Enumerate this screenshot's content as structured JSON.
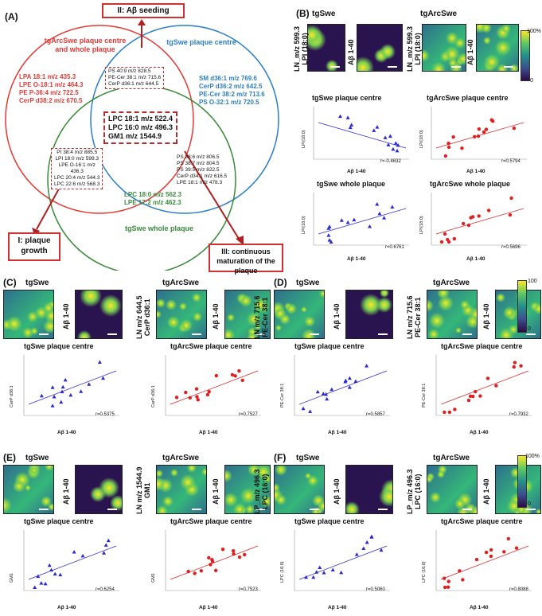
{
  "venn": {
    "panel": "(A)",
    "seeding": "II: Aβ seeding",
    "growth": "I: plaque growth",
    "maturation": "III: continuous maturation of the plaque",
    "red_title": "tgArcSwe plaque centre and whole plaque",
    "blue_title": "tgSwe plaque centre",
    "green_title": "tgSwe whole plaque",
    "red_only": [
      "LPA 18:1 m/z 435.3",
      "LPE O-18:1 m/z 464.3",
      "PE P-36:4 m/z 722.5",
      "CerP d38:2 m/z 670.5"
    ],
    "blue_only": [
      "SM d36:1 m/z 769.6",
      "CerP d36:2 m/z 642.5",
      "PE-Cer 38:2 m/z 713.6",
      "PS O-32:1 m/z 720.5"
    ],
    "green_only": [
      "LPC 18:0 m/z 562.3",
      "LPE 17:2 m/z 462.3"
    ],
    "red_blue": [
      "PS 40:9 m/z 828.5",
      "PE-Cer 38:1 m/z 715.6",
      "CerP d36:1 m/z 644.5"
    ],
    "red_green": [
      "PI 38:4 m/z 885.5",
      "LPI 18:0 m/z 599.3",
      "LPE O-16:1 m/z",
      "436.3",
      "LPC 20:4 m/z 544.3",
      "LPC 22:6 m/z 568.3"
    ],
    "blue_green": [
      "PS 38:6 m/z 806.5",
      "PS 38:7 m/z 804.5",
      "PS 39:5 m/z 822.5",
      "CerP d34:1 m/z 616.5",
      "LPE 18:1 m/z 478.3"
    ],
    "center": [
      "LPC 18:1 m/z 522.4",
      "LPC 16:0 m/z 496.3",
      "GM1 m/z 1544.9"
    ]
  },
  "colors": {
    "red": "#e53935",
    "blue": "#2a7fc8",
    "green": "#3a8a3a",
    "triangle": "#2a2ad0",
    "circle": "#e02020"
  },
  "common": {
    "tgSwe": "tgSwe",
    "tgArcSwe": "tgArcSwe",
    "abeta": "Aβ 1-40",
    "plaque_centre_swe": "tgSwe plaque centre",
    "plaque_centre_arc": "tgArcSwe plaque centre",
    "whole_swe": "tgSwe whole plaque",
    "whole_arc": "tgArcSwe whole plaque",
    "cb_top_pct": "100%",
    "cb_top": "100",
    "cb_bottom": "0"
  },
  "panels": {
    "B": {
      "letter": "(B)",
      "mz": "LN_m/z 599.3",
      "lipid": "LPI (18:0)",
      "ylabel": "LPI(18:0)",
      "r_swe_centre": "r=-0.4632",
      "r_arc_centre": "r=0.5794",
      "r_swe_whole": "r=0.6761",
      "r_arc_whole": "r=0.5696"
    },
    "C": {
      "letter": "(C)",
      "mz": "LN m/z 644.5",
      "lipid": "CerP d36:1",
      "ylabel": "CerP d36:1",
      "r_swe": "r=0.5375",
      "r_arc": "r=0.7527"
    },
    "D": {
      "letter": "(D)",
      "mz": "LN m/z 715.6",
      "lipid": "PE-Cer 38:1",
      "ylabel": "PE-Cer 38:1",
      "r_swe": "r=0.5857",
      "r_arc": "r=0.7932"
    },
    "E": {
      "letter": "(E)",
      "mz": "LN m/z 1544.9",
      "lipid": "GM1",
      "ylabel": "GM1",
      "r_swe": "r=0.6254",
      "r_arc": "r=0.7523"
    },
    "F": {
      "letter": "(F)",
      "mz": "LP_m/z 496.3",
      "lipid": "LPC (16:0)",
      "ylabel": "LPC (16:0)",
      "r_swe": "r=0.5060",
      "r_arc": "r=0.8088"
    }
  }
}
